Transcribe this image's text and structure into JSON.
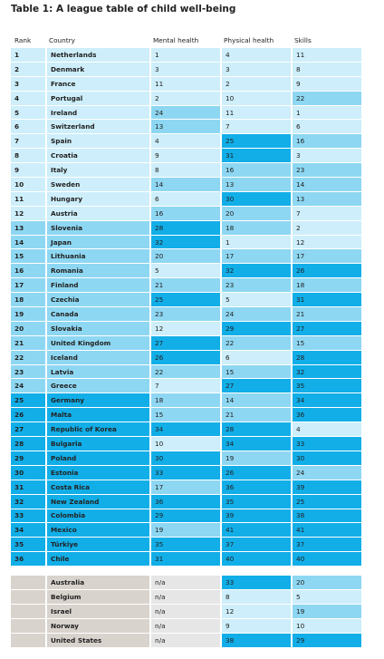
{
  "table": {
    "title": "Table 1: A league table of child well-being",
    "columns": [
      "Rank",
      "Country",
      "Mental health",
      "Physical health",
      "Skills"
    ],
    "rows": [
      [
        1,
        "Netherlands",
        1,
        4,
        11
      ],
      [
        2,
        "Denmark",
        3,
        3,
        8
      ],
      [
        3,
        "France",
        11,
        2,
        9
      ],
      [
        4,
        "Portugal",
        2,
        10,
        22
      ],
      [
        5,
        "Ireland",
        24,
        11,
        1
      ],
      [
        6,
        "Switzerland",
        13,
        7,
        6
      ],
      [
        7,
        "Spain",
        4,
        25,
        16
      ],
      [
        8,
        "Croatia",
        9,
        31,
        3
      ],
      [
        9,
        "Italy",
        8,
        16,
        23
      ],
      [
        10,
        "Sweden",
        14,
        13,
        14
      ],
      [
        11,
        "Hungary",
        6,
        30,
        13
      ],
      [
        12,
        "Austria",
        16,
        20,
        7
      ],
      [
        13,
        "Slovenia",
        28,
        18,
        2
      ],
      [
        14,
        "Japan",
        32,
        1,
        12
      ],
      [
        15,
        "Lithuania",
        20,
        17,
        17
      ],
      [
        16,
        "Romania",
        5,
        32,
        26
      ],
      [
        17,
        "Finland",
        21,
        23,
        18
      ],
      [
        18,
        "Czechia",
        25,
        5,
        31
      ],
      [
        19,
        "Canada",
        23,
        24,
        21
      ],
      [
        20,
        "Slovakia",
        12,
        29,
        27
      ],
      [
        21,
        "United Kingdom",
        27,
        22,
        15
      ],
      [
        22,
        "Iceland",
        26,
        6,
        28
      ],
      [
        23,
        "Latvia",
        22,
        15,
        32
      ],
      [
        24,
        "Greece",
        7,
        27,
        35
      ],
      [
        25,
        "Germany",
        18,
        14,
        34
      ],
      [
        26,
        "Malta",
        15,
        21,
        36
      ],
      [
        27,
        "Republic of Korea",
        34,
        28,
        4
      ],
      [
        28,
        "Bulgaria",
        10,
        34,
        33
      ],
      [
        29,
        "Poland",
        30,
        19,
        30
      ],
      [
        30,
        "Estonia",
        33,
        26,
        24
      ],
      [
        31,
        "Costa Rica",
        17,
        36,
        39
      ],
      [
        32,
        "New Zealand",
        36,
        35,
        25
      ],
      [
        33,
        "Colombia",
        29,
        39,
        38
      ],
      [
        34,
        "Mexico",
        19,
        41,
        41
      ],
      [
        35,
        "Türkiye",
        35,
        37,
        37
      ],
      [
        36,
        "Chile",
        31,
        40,
        40
      ]
    ],
    "unranked": [
      [
        "Australia",
        "n/a",
        33,
        20
      ],
      [
        "Belgium",
        "n/a",
        8,
        5
      ],
      [
        "Israel",
        "n/a",
        12,
        19
      ],
      [
        "Norway",
        "n/a",
        9,
        10
      ],
      [
        "United States",
        "n/a",
        38,
        29
      ]
    ]
  }
}
